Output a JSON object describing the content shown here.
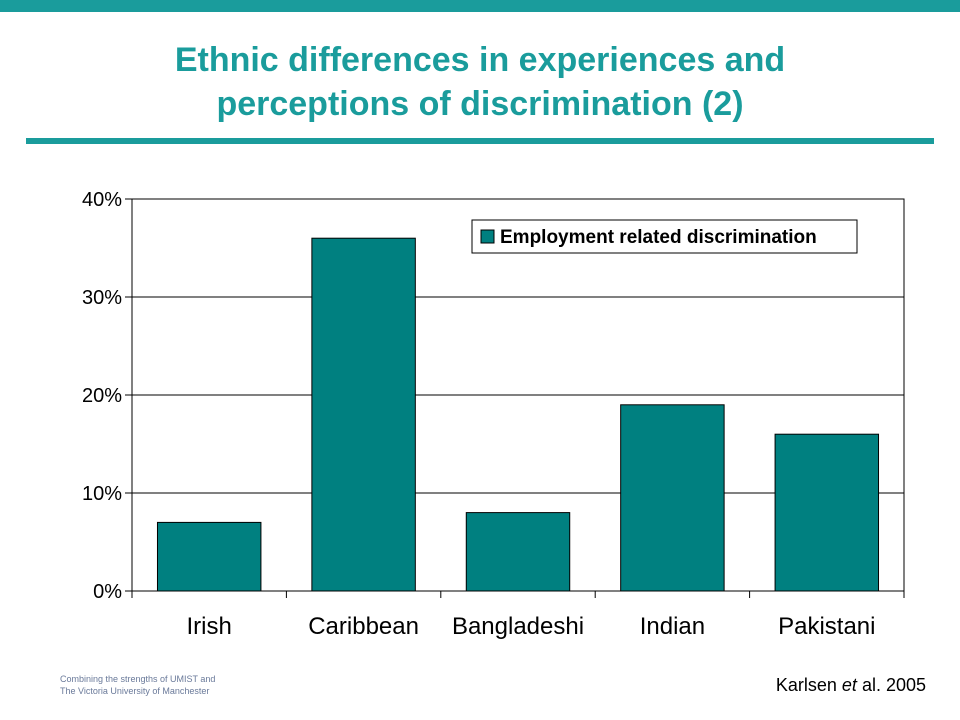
{
  "slide": {
    "title_line1": "Ethnic differences in experiences and",
    "title_line2": "perceptions of discrimination (2)",
    "footer_line1": "Combining the strengths of UMIST and",
    "footer_line2": "The Victoria University of Manchester",
    "citation_author": "Karlsen ",
    "citation_etal": "et",
    "citation_rest": " al. 2005"
  },
  "colors": {
    "accent": "#1a9c9c",
    "bar": "#008080"
  },
  "chart_data": {
    "type": "bar",
    "categories": [
      "Irish",
      "Caribbean",
      "Bangladeshi",
      "Indian",
      "Pakistani"
    ],
    "series": [
      {
        "name": "Employment related discrimination",
        "values": [
          7,
          36,
          8,
          19,
          16
        ]
      }
    ],
    "yticks": [
      "0%",
      "10%",
      "20%",
      "30%",
      "40%"
    ],
    "ylim": [
      0,
      40
    ],
    "grid": true,
    "legend_position": "top-right"
  }
}
